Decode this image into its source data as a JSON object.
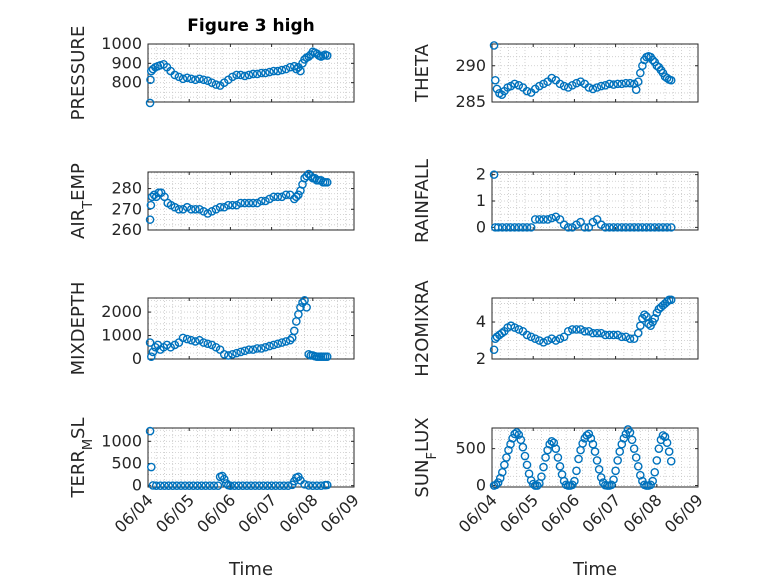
{
  "figure": {
    "title": "Figure 3 high",
    "xlabel": "Time",
    "x_ticks": [
      "06/04",
      "06/05",
      "06/06",
      "06/07",
      "06/08",
      "06/09"
    ],
    "marker_color": "#0072BD",
    "axes_color": "#262626",
    "grid_color": "#c8c8c8"
  },
  "chart_data": [
    {
      "id": "pressure",
      "type": "scatter",
      "ylabel": "PRESSURE",
      "ylabel_sub": "",
      "title": "Figure 3 high",
      "xlim": [
        0,
        5
      ],
      "ylim": [
        700,
        1000
      ],
      "yticks": [
        800,
        900,
        1000
      ],
      "grid": true,
      "x": [
        0.05,
        0.06,
        0.08,
        0.12,
        0.18,
        0.24,
        0.3,
        0.38,
        0.46,
        0.55,
        0.65,
        0.75,
        0.85,
        0.95,
        1.05,
        1.15,
        1.25,
        1.35,
        1.45,
        1.55,
        1.65,
        1.75,
        1.85,
        1.95,
        2.05,
        2.15,
        2.25,
        2.35,
        2.45,
        2.55,
        2.65,
        2.75,
        2.85,
        2.95,
        3.05,
        3.15,
        3.25,
        3.35,
        3.45,
        3.55,
        3.6,
        3.65,
        3.7,
        3.75,
        3.8,
        3.85,
        3.9,
        3.95,
        4.0,
        4.05,
        4.1,
        4.15,
        4.2,
        4.25,
        4.3,
        4.35
      ],
      "y": [
        695,
        815,
        860,
        870,
        880,
        885,
        890,
        895,
        880,
        860,
        840,
        830,
        820,
        825,
        820,
        815,
        820,
        815,
        810,
        800,
        790,
        785,
        800,
        815,
        830,
        840,
        840,
        835,
        840,
        845,
        845,
        850,
        850,
        855,
        860,
        860,
        865,
        870,
        880,
        885,
        870,
        880,
        860,
        900,
        920,
        930,
        935,
        945,
        960,
        955,
        950,
        940,
        935,
        940,
        945,
        940
      ]
    },
    {
      "id": "theta",
      "type": "scatter",
      "ylabel": "THETA",
      "ylabel_sub": "",
      "title": "",
      "xlim": [
        0,
        5
      ],
      "ylim": [
        285,
        293
      ],
      "yticks": [
        285,
        290
      ],
      "grid": true,
      "x": [
        0.05,
        0.08,
        0.12,
        0.18,
        0.24,
        0.3,
        0.38,
        0.46,
        0.55,
        0.65,
        0.75,
        0.85,
        0.95,
        1.05,
        1.15,
        1.25,
        1.35,
        1.45,
        1.55,
        1.65,
        1.75,
        1.85,
        1.95,
        2.05,
        2.15,
        2.25,
        2.35,
        2.45,
        2.55,
        2.65,
        2.75,
        2.85,
        2.95,
        3.05,
        3.15,
        3.25,
        3.35,
        3.45,
        3.5,
        3.55,
        3.6,
        3.65,
        3.7,
        3.75,
        3.8,
        3.85,
        3.9,
        3.95,
        4.0,
        4.05,
        4.1,
        4.15,
        4.2,
        4.25,
        4.3,
        4.35
      ],
      "y": [
        292.8,
        288.0,
        286.8,
        286.2,
        286.0,
        286.5,
        287.0,
        287.2,
        287.5,
        287.3,
        287.0,
        286.5,
        286.3,
        286.8,
        287.2,
        287.5,
        287.8,
        288.3,
        288.0,
        287.5,
        287.2,
        287.0,
        287.3,
        287.6,
        287.8,
        287.5,
        287.0,
        286.8,
        287.0,
        287.2,
        287.3,
        287.5,
        287.4,
        287.5,
        287.5,
        287.6,
        287.6,
        287.5,
        286.7,
        287.8,
        289.0,
        290.0,
        290.8,
        291.2,
        291.3,
        291.2,
        290.8,
        290.5,
        290.0,
        289.8,
        289.4,
        289.0,
        288.5,
        288.3,
        288.1,
        288.0
      ]
    },
    {
      "id": "air_temp",
      "type": "scatter",
      "ylabel": "AIR",
      "ylabel_sub": "T",
      "ylabel_tail": "EMP",
      "title": "",
      "xlim": [
        0,
        5
      ],
      "ylim": [
        260,
        288
      ],
      "yticks": [
        260,
        270,
        280
      ],
      "grid": true,
      "x": [
        0.05,
        0.07,
        0.1,
        0.15,
        0.2,
        0.26,
        0.32,
        0.4,
        0.48,
        0.56,
        0.65,
        0.75,
        0.85,
        0.95,
        1.05,
        1.15,
        1.25,
        1.35,
        1.45,
        1.55,
        1.65,
        1.75,
        1.85,
        1.95,
        2.05,
        2.15,
        2.25,
        2.35,
        2.45,
        2.55,
        2.65,
        2.75,
        2.85,
        2.95,
        3.05,
        3.15,
        3.25,
        3.35,
        3.45,
        3.55,
        3.6,
        3.65,
        3.7,
        3.75,
        3.8,
        3.85,
        3.9,
        3.95,
        4.0,
        4.05,
        4.1,
        4.15,
        4.2,
        4.25,
        4.3,
        4.35
      ],
      "y": [
        265,
        272,
        276,
        277,
        276,
        278,
        278,
        276,
        273,
        272,
        271,
        270,
        270,
        271,
        270,
        270,
        270,
        269,
        268,
        269,
        270,
        271,
        271,
        272,
        272,
        272,
        273,
        273,
        273,
        273,
        273,
        274,
        274,
        275,
        276,
        276,
        276,
        277,
        277,
        275,
        276,
        277,
        279,
        282,
        285,
        286,
        287,
        286,
        285,
        285,
        284,
        284,
        284,
        283,
        283,
        283
      ]
    },
    {
      "id": "rainfall",
      "type": "scatter",
      "ylabel": "RAINFALL",
      "ylabel_sub": "",
      "title": "",
      "xlim": [
        0,
        5
      ],
      "ylim": [
        -0.1,
        2.1
      ],
      "yticks": [
        0,
        1,
        2
      ],
      "grid": true,
      "x": [
        0.05,
        0.08,
        0.15,
        0.25,
        0.35,
        0.45,
        0.55,
        0.65,
        0.75,
        0.85,
        0.95,
        1.05,
        1.15,
        1.25,
        1.35,
        1.45,
        1.55,
        1.65,
        1.75,
        1.85,
        1.95,
        2.05,
        2.15,
        2.25,
        2.35,
        2.45,
        2.55,
        2.65,
        2.75,
        2.85,
        2.95,
        3.05,
        3.15,
        3.25,
        3.35,
        3.45,
        3.55,
        3.65,
        3.75,
        3.85,
        3.95,
        4.05,
        4.15,
        4.25,
        4.35
      ],
      "y": [
        2.0,
        0,
        0,
        0,
        0,
        0,
        0,
        0,
        0,
        0,
        0,
        0.3,
        0.3,
        0.3,
        0.3,
        0.35,
        0.4,
        0.3,
        0.1,
        0,
        0,
        0.1,
        0.2,
        0,
        0,
        0.2,
        0.3,
        0.1,
        0,
        0,
        0,
        0,
        0,
        0,
        0,
        0,
        0,
        0,
        0,
        0,
        0,
        0,
        0,
        0,
        0
      ]
    },
    {
      "id": "mixdepth",
      "type": "scatter",
      "ylabel": "MIXDEPTH",
      "ylabel_sub": "",
      "title": "",
      "xlim": [
        0,
        5
      ],
      "ylim": [
        0,
        2600
      ],
      "yticks": [
        0,
        1000,
        2000
      ],
      "grid": true,
      "x": [
        0.05,
        0.08,
        0.12,
        0.18,
        0.24,
        0.3,
        0.38,
        0.46,
        0.55,
        0.65,
        0.75,
        0.85,
        0.95,
        1.05,
        1.15,
        1.25,
        1.35,
        1.45,
        1.55,
        1.65,
        1.75,
        1.85,
        1.95,
        2.05,
        2.15,
        2.25,
        2.35,
        2.45,
        2.55,
        2.65,
        2.75,
        2.85,
        2.95,
        3.05,
        3.15,
        3.25,
        3.35,
        3.45,
        3.5,
        3.55,
        3.6,
        3.65,
        3.7,
        3.75,
        3.8,
        3.85,
        3.9,
        3.95,
        4.0,
        4.05,
        4.1,
        4.15,
        4.2,
        4.25,
        4.3,
        4.35
      ],
      "y": [
        700,
        100,
        300,
        500,
        600,
        400,
        500,
        600,
        500,
        600,
        700,
        900,
        850,
        800,
        750,
        800,
        700,
        650,
        600,
        500,
        400,
        200,
        150,
        200,
        250,
        300,
        350,
        400,
        400,
        450,
        450,
        500,
        550,
        600,
        650,
        700,
        750,
        800,
        900,
        1200,
        1600,
        1900,
        2200,
        2400,
        2500,
        2200,
        200,
        150,
        150,
        120,
        100,
        100,
        100,
        100,
        100,
        100
      ]
    },
    {
      "id": "h2omixra",
      "type": "scatter",
      "ylabel": "H2OMIXRA",
      "ylabel_sub": "",
      "title": "",
      "xlim": [
        0,
        5
      ],
      "ylim": [
        2,
        5.3
      ],
      "yticks": [
        2,
        4
      ],
      "grid": true,
      "x": [
        0.05,
        0.08,
        0.12,
        0.18,
        0.24,
        0.3,
        0.38,
        0.46,
        0.55,
        0.65,
        0.75,
        0.85,
        0.95,
        1.05,
        1.15,
        1.25,
        1.35,
        1.45,
        1.55,
        1.65,
        1.75,
        1.85,
        1.95,
        2.05,
        2.15,
        2.25,
        2.35,
        2.45,
        2.55,
        2.65,
        2.75,
        2.85,
        2.95,
        3.05,
        3.15,
        3.25,
        3.35,
        3.45,
        3.55,
        3.6,
        3.65,
        3.7,
        3.75,
        3.8,
        3.85,
        3.9,
        3.95,
        4.0,
        4.05,
        4.1,
        4.15,
        4.2,
        4.25,
        4.3,
        4.35
      ],
      "y": [
        2.5,
        3.1,
        3.2,
        3.3,
        3.4,
        3.5,
        3.7,
        3.8,
        3.7,
        3.6,
        3.5,
        3.3,
        3.2,
        3.1,
        3.0,
        2.9,
        3.0,
        3.1,
        3.0,
        3.1,
        3.2,
        3.5,
        3.6,
        3.6,
        3.6,
        3.5,
        3.5,
        3.4,
        3.4,
        3.4,
        3.3,
        3.3,
        3.3,
        3.3,
        3.2,
        3.2,
        3.1,
        3.1,
        3.4,
        3.8,
        4.2,
        4.4,
        4.3,
        3.9,
        3.8,
        4.0,
        4.2,
        4.5,
        4.7,
        4.8,
        4.9,
        5.0,
        5.1,
        5.2,
        5.2
      ]
    },
    {
      "id": "terr_msl",
      "type": "scatter",
      "ylabel": "TERR",
      "ylabel_sub": "M",
      "ylabel_tail": "SL",
      "title": "",
      "xlim": [
        0,
        5
      ],
      "ylim": [
        -30,
        1300
      ],
      "yticks": [
        0,
        500,
        1000
      ],
      "grid": true,
      "x": [
        0.05,
        0.08,
        0.12,
        0.2,
        0.3,
        0.4,
        0.5,
        0.6,
        0.7,
        0.8,
        0.9,
        1.0,
        1.1,
        1.2,
        1.3,
        1.4,
        1.5,
        1.6,
        1.7,
        1.75,
        1.8,
        1.85,
        1.9,
        1.95,
        2.0,
        2.1,
        2.2,
        2.3,
        2.4,
        2.5,
        2.6,
        2.7,
        2.8,
        2.9,
        3.0,
        3.1,
        3.2,
        3.3,
        3.4,
        3.5,
        3.55,
        3.6,
        3.65,
        3.7,
        3.8,
        3.9,
        4.0,
        4.1,
        4.2,
        4.3,
        4.35
      ],
      "y": [
        1230,
        420,
        5,
        0,
        0,
        0,
        0,
        0,
        0,
        0,
        0,
        0,
        0,
        0,
        0,
        0,
        0,
        0,
        0,
        200,
        220,
        150,
        50,
        10,
        0,
        0,
        0,
        0,
        0,
        0,
        0,
        0,
        0,
        0,
        0,
        0,
        0,
        0,
        0,
        20,
        100,
        180,
        200,
        120,
        30,
        5,
        0,
        0,
        0,
        10,
        15
      ]
    },
    {
      "id": "sun_flux",
      "type": "scatter",
      "ylabel": "SUN",
      "ylabel_sub": "F",
      "ylabel_tail": "LUX",
      "title": "",
      "xlim": [
        0,
        5
      ],
      "ylim": [
        -20,
        780
      ],
      "yticks": [
        0,
        500
      ],
      "grid": true,
      "x": [
        0.05,
        0.1,
        0.15,
        0.2,
        0.25,
        0.3,
        0.35,
        0.4,
        0.45,
        0.5,
        0.55,
        0.6,
        0.65,
        0.7,
        0.75,
        0.8,
        0.85,
        0.9,
        0.95,
        1.0,
        1.05,
        1.1,
        1.15,
        1.2,
        1.25,
        1.3,
        1.35,
        1.4,
        1.45,
        1.5,
        1.55,
        1.6,
        1.65,
        1.7,
        1.75,
        1.8,
        1.85,
        1.9,
        1.95,
        2.0,
        2.05,
        2.1,
        2.15,
        2.2,
        2.25,
        2.3,
        2.35,
        2.4,
        2.45,
        2.5,
        2.55,
        2.6,
        2.65,
        2.7,
        2.75,
        2.8,
        2.85,
        2.9,
        2.95,
        3.0,
        3.05,
        3.1,
        3.15,
        3.2,
        3.25,
        3.3,
        3.35,
        3.4,
        3.45,
        3.5,
        3.55,
        3.6,
        3.65,
        3.7,
        3.75,
        3.8,
        3.85,
        3.9,
        3.95,
        4.0,
        4.05,
        4.1,
        4.15,
        4.2,
        4.25,
        4.3,
        4.35
      ],
      "y": [
        0,
        10,
        40,
        100,
        180,
        280,
        380,
        480,
        560,
        640,
        700,
        720,
        690,
        620,
        520,
        400,
        280,
        160,
        70,
        20,
        0,
        0,
        30,
        120,
        250,
        380,
        480,
        560,
        600,
        580,
        500,
        380,
        260,
        150,
        60,
        10,
        0,
        0,
        10,
        60,
        200,
        360,
        480,
        570,
        640,
        680,
        700,
        640,
        560,
        460,
        340,
        220,
        110,
        40,
        5,
        0,
        0,
        10,
        80,
        200,
        340,
        460,
        560,
        640,
        700,
        760,
        720,
        620,
        500,
        380,
        260,
        140,
        60,
        10,
        0,
        0,
        10,
        60,
        180,
        340,
        500,
        620,
        680,
        660,
        580,
        460,
        330
      ]
    }
  ]
}
